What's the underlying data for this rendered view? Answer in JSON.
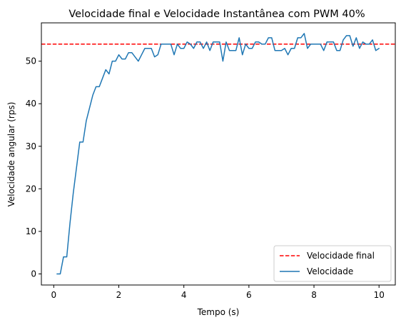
{
  "chart_data": {
    "type": "line",
    "title": "Velocidade final e Velocidade Instantânea com PWM 40%",
    "xlabel": "Tempo (s)",
    "ylabel": "Velocidade angular (rps)",
    "xlim": [
      -0.38,
      10.5
    ],
    "ylim": [
      -2.6,
      59.0
    ],
    "xticks": [
      0,
      2,
      4,
      6,
      8,
      10
    ],
    "yticks": [
      0,
      10,
      20,
      30,
      40,
      50
    ],
    "grid": false,
    "legend_position": "bottom-right",
    "reference_line": {
      "name": "Velocidade final",
      "y": 54.0,
      "color": "#ff0000",
      "style": "dashed"
    },
    "series": [
      {
        "name": "Velocidade",
        "color": "#1f77b4",
        "x": [
          0.1,
          0.2,
          0.3,
          0.4,
          0.5,
          0.6,
          0.7,
          0.8,
          0.9,
          1.0,
          1.1,
          1.2,
          1.3,
          1.4,
          1.5,
          1.6,
          1.7,
          1.8,
          1.9,
          2.0,
          2.1,
          2.2,
          2.3,
          2.4,
          2.5,
          2.6,
          2.7,
          2.8,
          2.9,
          3.0,
          3.1,
          3.2,
          3.3,
          3.4,
          3.5,
          3.6,
          3.7,
          3.8,
          3.9,
          4.0,
          4.1,
          4.2,
          4.3,
          4.4,
          4.5,
          4.6,
          4.7,
          4.8,
          4.9,
          5.0,
          5.1,
          5.2,
          5.3,
          5.4,
          5.5,
          5.6,
          5.7,
          5.8,
          5.9,
          6.0,
          6.1,
          6.2,
          6.3,
          6.4,
          6.5,
          6.6,
          6.7,
          6.8,
          6.9,
          7.0,
          7.1,
          7.2,
          7.3,
          7.4,
          7.5,
          7.6,
          7.7,
          7.8,
          7.9,
          8.0,
          8.1,
          8.2,
          8.3,
          8.4,
          8.5,
          8.6,
          8.7,
          8.8,
          8.9,
          9.0,
          9.1,
          9.2,
          9.3,
          9.4,
          9.5,
          9.6,
          9.7,
          9.8,
          9.9,
          10.0
        ],
        "y": [
          0.0,
          0.0,
          4.0,
          4.0,
          12.0,
          19.0,
          25.0,
          31.0,
          31.0,
          36.0,
          39.0,
          42.0,
          44.0,
          44.0,
          46.0,
          48.0,
          47.0,
          50.0,
          50.0,
          51.5,
          50.5,
          50.5,
          52.0,
          52.0,
          51.0,
          50.0,
          51.5,
          53.0,
          53.0,
          53.0,
          51.0,
          51.5,
          54.0,
          54.0,
          54.0,
          54.0,
          51.5,
          54.0,
          53.0,
          53.0,
          54.5,
          54.0,
          53.0,
          54.5,
          54.5,
          53.0,
          54.5,
          52.5,
          54.5,
          54.5,
          54.5,
          50.0,
          54.5,
          52.5,
          52.5,
          52.5,
          55.5,
          51.5,
          54.0,
          53.0,
          53.0,
          54.5,
          54.5,
          54.0,
          54.0,
          55.5,
          55.5,
          52.5,
          52.5,
          52.5,
          53.0,
          51.5,
          53.0,
          53.0,
          55.5,
          55.5,
          56.5,
          53.0,
          54.0,
          54.0,
          54.0,
          54.0,
          52.5,
          54.5,
          54.5,
          54.5,
          52.5,
          52.5,
          55.0,
          56.0,
          56.0,
          53.5,
          55.5,
          53.0,
          54.5,
          54.0,
          54.0,
          55.0,
          52.5,
          53.0
        ]
      }
    ]
  }
}
